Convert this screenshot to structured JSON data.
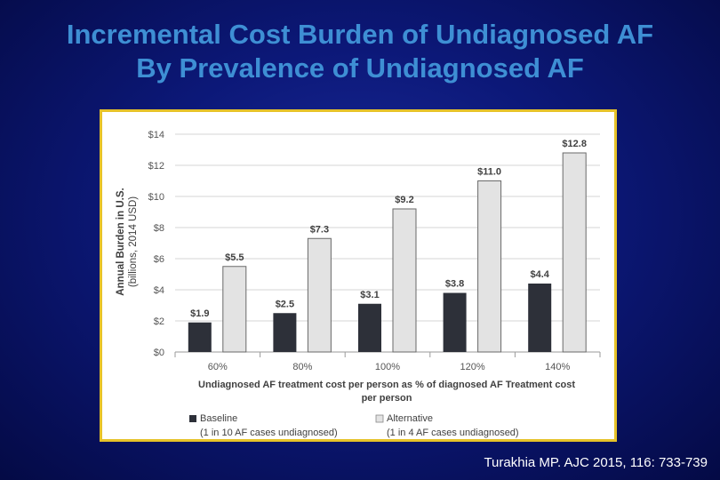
{
  "slide": {
    "title_line1": "Incremental Cost Burden of Undiagnosed AF",
    "title_line2": "By Prevalence of Undiagnosed AF",
    "citation": "Turakhia MP. AJC 2015, 116: 733-739"
  },
  "colors": {
    "background": "#0c1878",
    "title": "#3e8fd4",
    "frame_border": "#e6c229",
    "baseline_bar": "#2d3039",
    "alternative_bar": "#e3e3e3",
    "axis_text": "#555555",
    "label_text": "#404040"
  },
  "chart_data": {
    "type": "bar",
    "xlabel_line1": "Undiagnosed AF treatment cost per person as % of diagnosed AF Treatment cost",
    "xlabel_line2": "per person",
    "ylabel_line1": "Annual Burden in U.S.",
    "ylabel_line2": "(billions, 2014 USD)",
    "ylim": [
      0,
      14
    ],
    "yticks": [
      0,
      2,
      4,
      6,
      8,
      10,
      12,
      14
    ],
    "ytick_labels": [
      "$0",
      "$2",
      "$4",
      "$6",
      "$8",
      "$10",
      "$12",
      "$14"
    ],
    "grid": true,
    "legend_position": "bottom",
    "categories": [
      "60%",
      "80%",
      "100%",
      "120%",
      "140%"
    ],
    "series": [
      {
        "name": "Baseline",
        "sublabel": "(1 in 10 AF cases undiagnosed)",
        "values": [
          1.9,
          2.5,
          3.1,
          3.8,
          4.4
        ],
        "labels": [
          "$1.9",
          "$2.5",
          "$3.1",
          "$3.8",
          "$4.4"
        ]
      },
      {
        "name": "Alternative",
        "sublabel": "(1 in 4 AF cases undiagnosed)",
        "values": [
          5.5,
          7.3,
          9.2,
          11.0,
          12.8
        ],
        "labels": [
          "$5.5",
          "$7.3",
          "$9.2",
          "$11.0",
          "$12.8"
        ]
      }
    ]
  }
}
